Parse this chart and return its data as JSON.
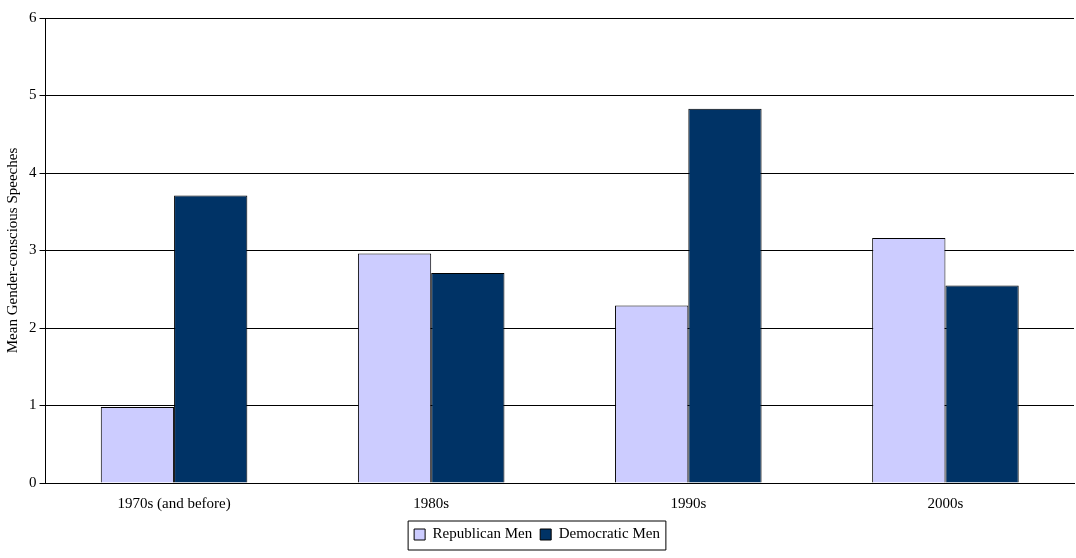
{
  "chart_data": {
    "type": "bar",
    "ylabel": "Mean Gender-conscious Speeches",
    "categories": [
      "1970s (and before)",
      "1980s",
      "1990s",
      "2000s"
    ],
    "series": [
      {
        "name": "Republican Men",
        "color": "#ccccff",
        "values": [
          0.98,
          2.96,
          2.29,
          3.16
        ]
      },
      {
        "name": "Democratic Men",
        "color": "#003366",
        "values": [
          3.71,
          2.71,
          4.83,
          2.55
        ]
      }
    ],
    "ylim": [
      0,
      6
    ],
    "yticks": [
      0,
      1,
      2,
      3,
      4,
      5,
      6
    ],
    "grid": "y",
    "legend": "bottom"
  }
}
